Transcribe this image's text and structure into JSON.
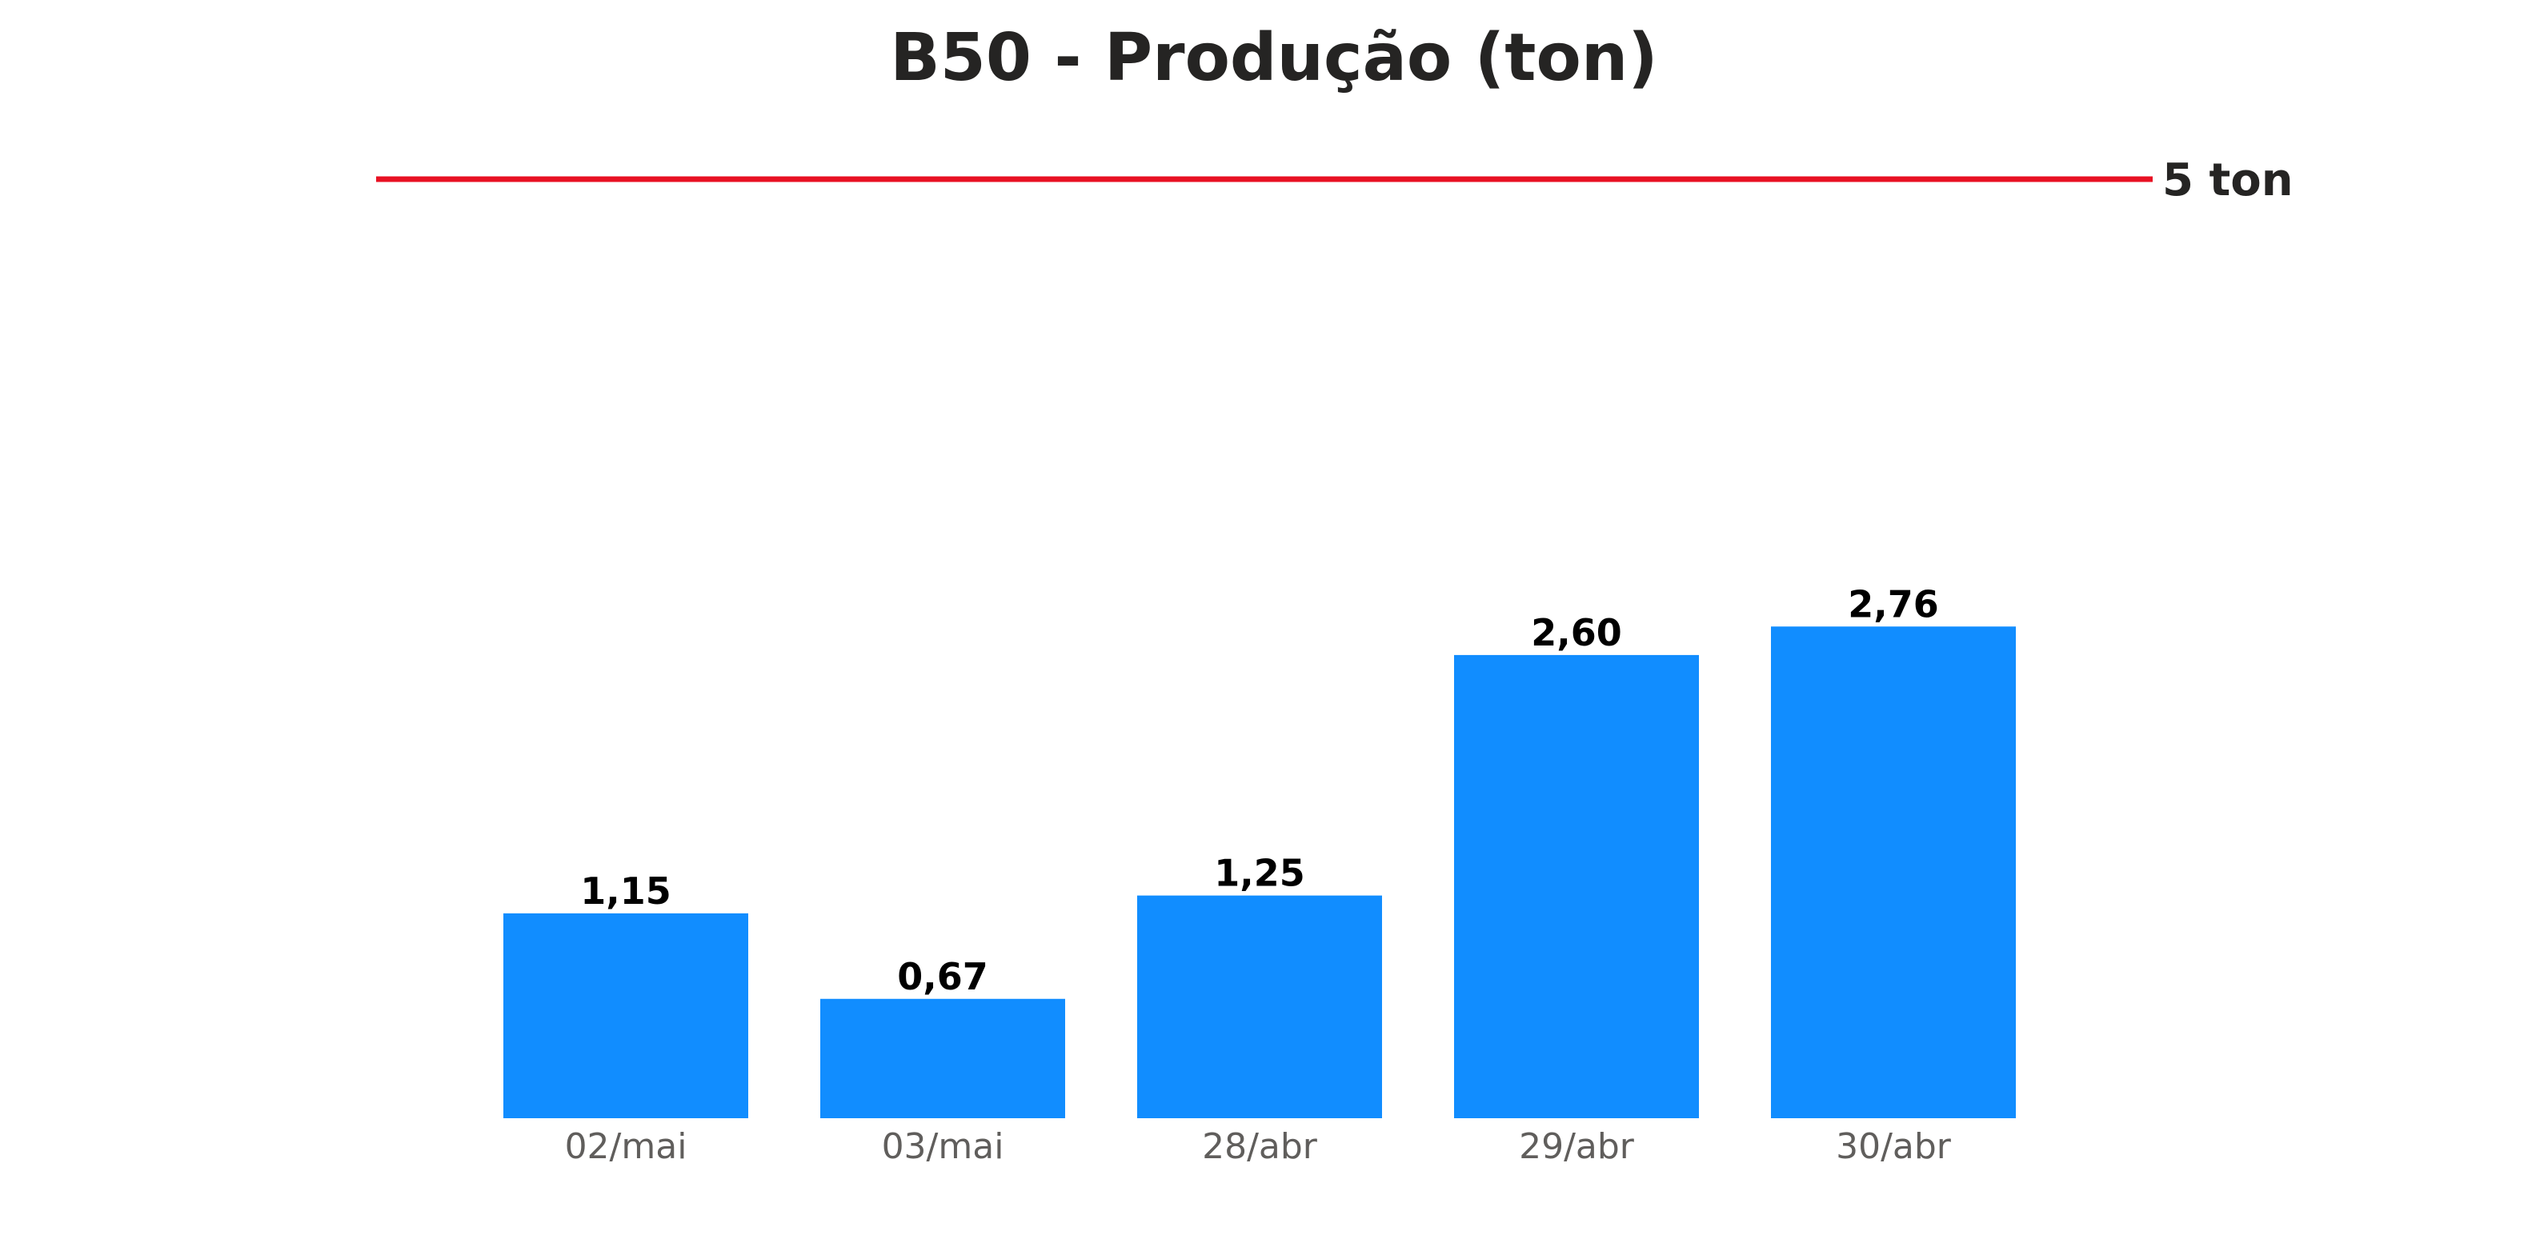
{
  "chart_data": {
    "type": "bar",
    "title": "B50 - Produção (ton)",
    "categories": [
      "02/mai",
      "03/mai",
      "28/abr",
      "29/abr",
      "30/abr"
    ],
    "values": [
      1.15,
      0.67,
      1.25,
      2.6,
      2.76
    ],
    "value_labels": [
      "1,15",
      "0,67",
      "1,25",
      "2,60",
      "2,76"
    ],
    "ylim": [
      0,
      5.5
    ],
    "grid": false,
    "target": {
      "value": 5,
      "label": "5 ton",
      "color": "#e81123"
    },
    "bar_color": "#118dff"
  }
}
